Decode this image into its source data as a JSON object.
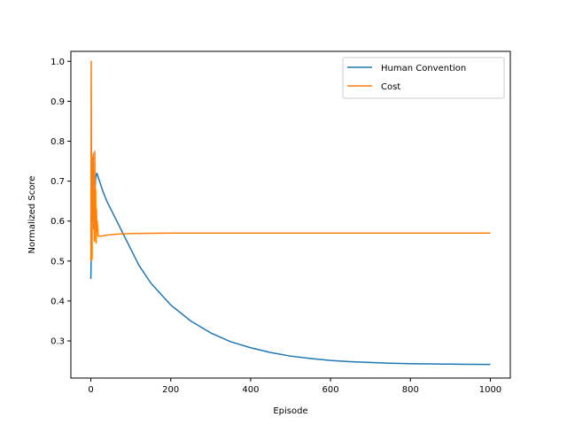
{
  "chart_data": {
    "type": "line",
    "title": "",
    "xlabel": "Episode",
    "ylabel": "Normalized Score",
    "xlim": [
      -50,
      1050
    ],
    "ylim": [
      0.207,
      1.025
    ],
    "xticks": [
      0,
      200,
      400,
      600,
      800,
      1000
    ],
    "xtick_labels": [
      "0",
      "200",
      "400",
      "600",
      "800",
      "1000"
    ],
    "yticks": [
      0.3,
      0.4,
      0.5,
      0.6,
      0.7,
      0.8,
      0.9,
      1.0
    ],
    "ytick_labels": [
      "0.3",
      "0.4",
      "0.5",
      "0.6",
      "0.7",
      "0.8",
      "0.9",
      "1.0"
    ],
    "grid": false,
    "legend_position": "top-right",
    "series": [
      {
        "name": "Human Convention",
        "color": "#1f77b4",
        "x": [
          0,
          1,
          2,
          3,
          4,
          5,
          6,
          8,
          10,
          12,
          15,
          20,
          30,
          40,
          60,
          80,
          100,
          120,
          150,
          200,
          250,
          300,
          350,
          400,
          450,
          500,
          550,
          600,
          650,
          700,
          750,
          800,
          850,
          900,
          950,
          1000
        ],
        "y": [
          0.455,
          0.52,
          0.6,
          0.68,
          0.65,
          0.6,
          0.68,
          0.7,
          0.66,
          0.71,
          0.72,
          0.705,
          0.675,
          0.65,
          0.61,
          0.57,
          0.53,
          0.49,
          0.445,
          0.39,
          0.35,
          0.32,
          0.298,
          0.283,
          0.271,
          0.262,
          0.256,
          0.251,
          0.248,
          0.246,
          0.244,
          0.243,
          0.2425,
          0.242,
          0.2415,
          0.241
        ]
      },
      {
        "name": "Cost",
        "color": "#ff7f0e",
        "x": [
          0,
          1,
          2,
          3,
          4,
          5,
          6,
          7,
          8,
          9,
          10,
          11,
          12,
          13,
          14,
          15,
          16,
          18,
          20,
          25,
          30,
          40,
          50,
          60,
          80,
          100,
          150,
          200,
          300,
          400,
          500,
          600,
          700,
          800,
          900,
          1000
        ],
        "y": [
          0.5,
          1.0,
          0.6,
          0.505,
          0.76,
          0.62,
          0.77,
          0.58,
          0.7,
          0.55,
          0.775,
          0.6,
          0.68,
          0.545,
          0.63,
          0.575,
          0.6,
          0.562,
          0.563,
          0.562,
          0.563,
          0.565,
          0.566,
          0.567,
          0.568,
          0.569,
          0.5695,
          0.57,
          0.57,
          0.57,
          0.57,
          0.57,
          0.57,
          0.57,
          0.57,
          0.57
        ]
      }
    ]
  }
}
